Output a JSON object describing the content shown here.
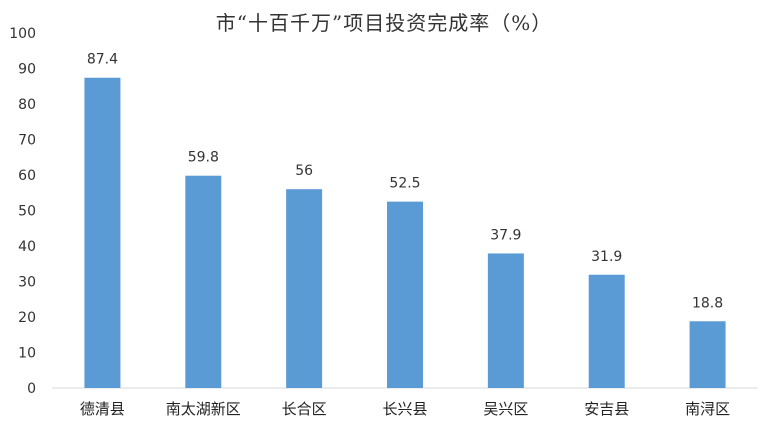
{
  "chart_data": {
    "type": "bar",
    "title": "市“十百千万”项目投资完成率（%）",
    "categories": [
      "德清县",
      "南太湖新区",
      "长合区",
      "长兴县",
      "吴兴区",
      "安吉县",
      "南浔区"
    ],
    "values": [
      87.4,
      59.8,
      56,
      52.5,
      37.9,
      31.9,
      18.8
    ],
    "data_labels": [
      "87.4",
      "59.8",
      "56",
      "52.5",
      "37.9",
      "31.9",
      "18.8"
    ],
    "yticks": [
      "0",
      "10",
      "20",
      "30",
      "40",
      "50",
      "60",
      "70",
      "80",
      "90",
      "100"
    ],
    "ylim": [
      0,
      100
    ],
    "grid": false,
    "bar_color": "#5b9bd5",
    "xlabel": "",
    "ylabel": ""
  }
}
